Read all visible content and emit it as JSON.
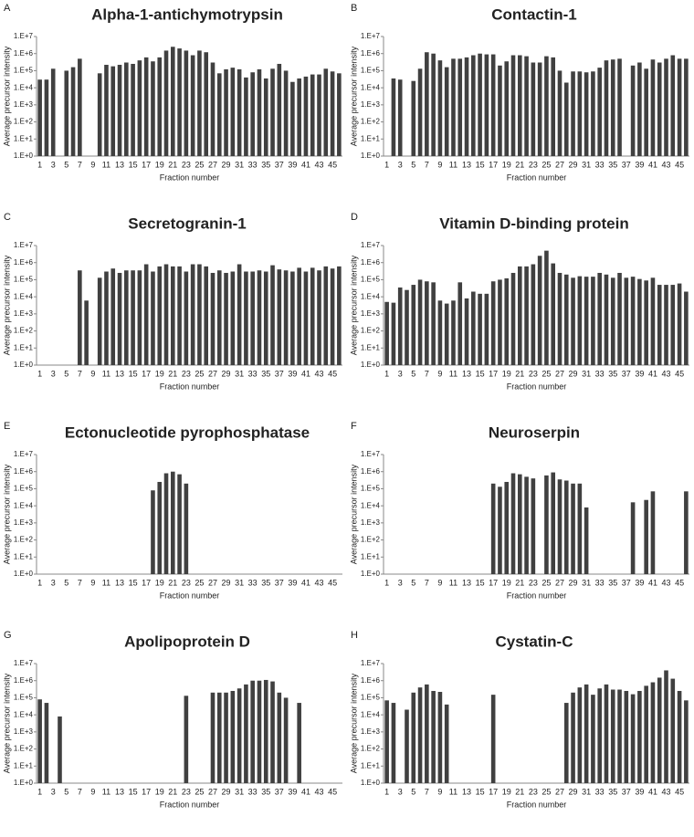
{
  "chart_data": [
    {
      "type": "bar",
      "label": "A",
      "title": "Alpha-1-antichymotrypsin",
      "xlabel": "Fraction number",
      "ylabel": "Average precursor intensity",
      "log_scale": true,
      "color": "#404040",
      "categories": [
        1,
        null,
        3,
        null,
        5,
        null,
        7,
        null,
        9,
        null,
        11,
        null,
        13,
        null,
        15,
        null,
        17,
        null,
        19,
        null,
        21,
        null,
        23,
        null,
        25,
        null,
        27,
        null,
        29,
        null,
        31,
        null,
        33,
        null,
        35,
        null,
        37,
        null,
        39,
        null,
        41,
        null,
        43,
        null,
        45,
        null
      ],
      "values": [
        30000,
        30000,
        130000,
        null,
        100000,
        160000,
        500000,
        null,
        null,
        70000,
        220000,
        180000,
        220000,
        300000,
        250000,
        400000,
        600000,
        350000,
        600000,
        1500000,
        2500000,
        2000000,
        1500000,
        800000,
        1500000,
        1200000,
        300000,
        70000,
        120000,
        150000,
        120000,
        40000,
        80000,
        120000,
        35000,
        130000,
        250000,
        100000,
        22000,
        35000,
        45000,
        60000,
        60000,
        130000,
        90000,
        70000
      ],
      "ylim": [
        1,
        10000000
      ],
      "yticks": [
        {
          "value": 1,
          "label": "1.E+0"
        },
        {
          "value": 10,
          "label": "1.E+1"
        },
        {
          "value": 100,
          "label": "1.E+2"
        },
        {
          "value": 1000,
          "label": "1.E+3"
        },
        {
          "value": 10000,
          "label": "1.E+4"
        },
        {
          "value": 100000,
          "label": "1.E+5"
        },
        {
          "value": 1000000,
          "label": "1.E+6"
        },
        {
          "value": 10000000,
          "label": "1.E+7"
        }
      ]
    },
    {
      "type": "bar",
      "label": "B",
      "title": "Contactin-1",
      "xlabel": "Fraction number",
      "ylabel": "Average precursor intensity",
      "log_scale": true,
      "color": "#404040",
      "categories": [
        1,
        null,
        3,
        null,
        5,
        null,
        7,
        null,
        9,
        null,
        11,
        null,
        13,
        null,
        15,
        null,
        17,
        null,
        19,
        null,
        21,
        null,
        23,
        null,
        25,
        null,
        27,
        null,
        29,
        null,
        31,
        null,
        33,
        null,
        35,
        null,
        37,
        null,
        39,
        null,
        41,
        null,
        43,
        null,
        45,
        null
      ],
      "values": [
        null,
        35000,
        30000,
        null,
        25000,
        130000,
        1200000,
        1000000,
        400000,
        160000,
        500000,
        500000,
        600000,
        800000,
        1000000,
        900000,
        900000,
        200000,
        350000,
        800000,
        800000,
        700000,
        300000,
        300000,
        700000,
        600000,
        100000,
        20000,
        90000,
        90000,
        80000,
        90000,
        150000,
        400000,
        450000,
        500000,
        null,
        200000,
        300000,
        130000,
        450000,
        300000,
        500000,
        800000,
        500000,
        500000
      ],
      "ylim": [
        1,
        10000000
      ],
      "yticks": [
        {
          "value": 1,
          "label": "1.E+0"
        },
        {
          "value": 10,
          "label": "1.E+1"
        },
        {
          "value": 100,
          "label": "1.E+2"
        },
        {
          "value": 1000,
          "label": "1.E+3"
        },
        {
          "value": 10000,
          "label": "1.E+4"
        },
        {
          "value": 100000,
          "label": "1.E+5"
        },
        {
          "value": 1000000,
          "label": "1.E+6"
        },
        {
          "value": 10000000,
          "label": "1.E+7"
        }
      ]
    },
    {
      "type": "bar",
      "label": "C",
      "title": "Secretogranin-1",
      "xlabel": "Fraction number",
      "ylabel": "Average precursor intensity",
      "log_scale": true,
      "color": "#404040",
      "categories": [
        1,
        null,
        3,
        null,
        5,
        null,
        7,
        null,
        9,
        null,
        11,
        null,
        13,
        null,
        15,
        null,
        17,
        null,
        19,
        null,
        21,
        null,
        23,
        null,
        25,
        null,
        27,
        null,
        29,
        null,
        31,
        null,
        33,
        null,
        35,
        null,
        37,
        null,
        39,
        null,
        41,
        null,
        43,
        null,
        45,
        null
      ],
      "values": [
        null,
        null,
        null,
        null,
        null,
        null,
        350000,
        6000,
        null,
        130000,
        300000,
        450000,
        250000,
        350000,
        350000,
        350000,
        800000,
        300000,
        600000,
        800000,
        600000,
        600000,
        300000,
        800000,
        800000,
        600000,
        250000,
        350000,
        250000,
        300000,
        800000,
        300000,
        300000,
        350000,
        300000,
        700000,
        400000,
        350000,
        300000,
        500000,
        300000,
        500000,
        350000,
        600000,
        450000,
        600000
      ],
      "ylim": [
        1,
        10000000
      ],
      "yticks": [
        {
          "value": 1,
          "label": "1.E+0"
        },
        {
          "value": 10,
          "label": "1.E+1"
        },
        {
          "value": 100,
          "label": "1.E+2"
        },
        {
          "value": 1000,
          "label": "1.E+3"
        },
        {
          "value": 10000,
          "label": "1.E+4"
        },
        {
          "value": 100000,
          "label": "1.E+5"
        },
        {
          "value": 1000000,
          "label": "1.E+6"
        },
        {
          "value": 10000000,
          "label": "1.E+7"
        }
      ]
    },
    {
      "type": "bar",
      "label": "D",
      "title": "Vitamin D-binding protein",
      "xlabel": "Fraction number",
      "ylabel": "Average precursor intensity",
      "log_scale": true,
      "color": "#404040",
      "categories": [
        1,
        null,
        3,
        null,
        5,
        null,
        7,
        null,
        9,
        null,
        11,
        null,
        13,
        null,
        15,
        null,
        17,
        null,
        19,
        null,
        21,
        null,
        23,
        null,
        25,
        null,
        27,
        null,
        29,
        null,
        31,
        null,
        33,
        null,
        35,
        null,
        37,
        null,
        39,
        null,
        41,
        null,
        43,
        null,
        45,
        null
      ],
      "values": [
        5000,
        4500,
        35000,
        25000,
        50000,
        100000,
        80000,
        70000,
        6000,
        4000,
        6000,
        70000,
        8000,
        20000,
        15000,
        15000,
        80000,
        100000,
        120000,
        250000,
        600000,
        600000,
        800000,
        2500000,
        5000000,
        900000,
        250000,
        200000,
        130000,
        160000,
        150000,
        150000,
        250000,
        200000,
        130000,
        250000,
        130000,
        150000,
        110000,
        90000,
        130000,
        50000,
        50000,
        50000,
        60000,
        20000
      ],
      "ylim": [
        1,
        10000000
      ],
      "yticks": [
        {
          "value": 1,
          "label": "1.E+0"
        },
        {
          "value": 10,
          "label": "1.E+1"
        },
        {
          "value": 100,
          "label": "1.E+2"
        },
        {
          "value": 1000,
          "label": "1.E+3"
        },
        {
          "value": 10000,
          "label": "1.E+4"
        },
        {
          "value": 100000,
          "label": "1.E+5"
        },
        {
          "value": 1000000,
          "label": "1.E+6"
        },
        {
          "value": 10000000,
          "label": "1.E+7"
        }
      ]
    },
    {
      "type": "bar",
      "label": "E",
      "title": "Ectonucleotide pyrophosphatase",
      "xlabel": "Fraction number",
      "ylabel": "Average precursor intensity",
      "log_scale": true,
      "color": "#404040",
      "categories": [
        1,
        null,
        3,
        null,
        5,
        null,
        7,
        null,
        9,
        null,
        11,
        null,
        13,
        null,
        15,
        null,
        17,
        null,
        19,
        null,
        21,
        null,
        23,
        null,
        25,
        null,
        27,
        null,
        29,
        null,
        31,
        null,
        33,
        null,
        35,
        null,
        37,
        null,
        39,
        null,
        41,
        null,
        43,
        null,
        45,
        null
      ],
      "values": [
        null,
        null,
        null,
        null,
        null,
        null,
        null,
        null,
        null,
        null,
        null,
        null,
        null,
        null,
        null,
        null,
        null,
        80000,
        250000,
        800000,
        1000000,
        700000,
        200000,
        null,
        null,
        null,
        null,
        null,
        null,
        null,
        null,
        null,
        null,
        null,
        null,
        null,
        null,
        null,
        null,
        null,
        null,
        null,
        null,
        null,
        null,
        null
      ],
      "ylim": [
        1,
        10000000
      ],
      "yticks": [
        {
          "value": 1,
          "label": "1.E+0"
        },
        {
          "value": 10,
          "label": "1.E+1"
        },
        {
          "value": 100,
          "label": "1.E+2"
        },
        {
          "value": 1000,
          "label": "1.E+3"
        },
        {
          "value": 10000,
          "label": "1.E+4"
        },
        {
          "value": 100000,
          "label": "1.E+5"
        },
        {
          "value": 1000000,
          "label": "1.E+6"
        },
        {
          "value": 10000000,
          "label": "1.E+7"
        }
      ]
    },
    {
      "type": "bar",
      "label": "F",
      "title": "Neuroserpin",
      "xlabel": "Fraction number",
      "ylabel": "Average precursor intensity",
      "log_scale": true,
      "color": "#404040",
      "categories": [
        1,
        null,
        3,
        null,
        5,
        null,
        7,
        null,
        9,
        null,
        11,
        null,
        13,
        null,
        15,
        null,
        17,
        null,
        19,
        null,
        21,
        null,
        23,
        null,
        25,
        null,
        27,
        null,
        29,
        null,
        31,
        null,
        33,
        null,
        35,
        null,
        37,
        null,
        39,
        null,
        41,
        null,
        43,
        null,
        45,
        null
      ],
      "values": [
        null,
        null,
        null,
        null,
        null,
        null,
        null,
        null,
        null,
        null,
        null,
        null,
        null,
        null,
        null,
        null,
        200000,
        130000,
        250000,
        800000,
        700000,
        500000,
        400000,
        null,
        600000,
        900000,
        350000,
        300000,
        200000,
        200000,
        8000,
        null,
        null,
        null,
        null,
        null,
        null,
        16000,
        null,
        22000,
        70000,
        null,
        null,
        null,
        null,
        70000
      ],
      "ylim": [
        1,
        10000000
      ],
      "yticks": [
        {
          "value": 1,
          "label": "1.E+0"
        },
        {
          "value": 10,
          "label": "1.E+1"
        },
        {
          "value": 100,
          "label": "1.E+2"
        },
        {
          "value": 1000,
          "label": "1.E+3"
        },
        {
          "value": 10000,
          "label": "1.E+4"
        },
        {
          "value": 100000,
          "label": "1.E+5"
        },
        {
          "value": 1000000,
          "label": "1.E+6"
        },
        {
          "value": 10000000,
          "label": "1.E+7"
        }
      ]
    },
    {
      "type": "bar",
      "label": "G",
      "title": "Apolipoprotein D",
      "xlabel": "Fraction number",
      "ylabel": "Average precursor intensity",
      "log_scale": true,
      "color": "#404040",
      "categories": [
        1,
        null,
        3,
        null,
        5,
        null,
        7,
        null,
        9,
        null,
        11,
        null,
        13,
        null,
        15,
        null,
        17,
        null,
        19,
        null,
        21,
        null,
        23,
        null,
        25,
        null,
        27,
        null,
        29,
        null,
        31,
        null,
        33,
        null,
        35,
        null,
        37,
        null,
        39,
        null,
        41,
        null,
        43,
        null,
        45,
        null
      ],
      "values": [
        80000,
        50000,
        null,
        8000,
        null,
        null,
        null,
        null,
        null,
        null,
        null,
        null,
        null,
        null,
        null,
        null,
        null,
        null,
        null,
        null,
        null,
        null,
        130000,
        null,
        null,
        null,
        200000,
        200000,
        200000,
        250000,
        350000,
        600000,
        1000000,
        1000000,
        1100000,
        900000,
        200000,
        100000,
        null,
        50000,
        null,
        null,
        null,
        null,
        null,
        null
      ],
      "ylim": [
        1,
        10000000
      ],
      "yticks": [
        {
          "value": 1,
          "label": "1.E+0"
        },
        {
          "value": 10,
          "label": "1.E+1"
        },
        {
          "value": 100,
          "label": "1.E+2"
        },
        {
          "value": 1000,
          "label": "1.E+3"
        },
        {
          "value": 10000,
          "label": "1.E+4"
        },
        {
          "value": 100000,
          "label": "1.E+5"
        },
        {
          "value": 1000000,
          "label": "1.E+6"
        },
        {
          "value": 10000000,
          "label": "1.E+7"
        }
      ]
    },
    {
      "type": "bar",
      "label": "H",
      "title": "Cystatin-C",
      "xlabel": "Fraction number",
      "ylabel": "Average precursor intensity",
      "log_scale": true,
      "color": "#404040",
      "categories": [
        1,
        null,
        3,
        null,
        5,
        null,
        7,
        null,
        9,
        null,
        11,
        null,
        13,
        null,
        15,
        null,
        17,
        null,
        19,
        null,
        21,
        null,
        23,
        null,
        25,
        null,
        27,
        null,
        29,
        null,
        31,
        null,
        33,
        null,
        35,
        null,
        37,
        null,
        39,
        null,
        41,
        null,
        43,
        null,
        45,
        null
      ],
      "values": [
        70000,
        50000,
        null,
        20000,
        200000,
        400000,
        600000,
        250000,
        220000,
        40000,
        null,
        null,
        null,
        null,
        null,
        null,
        150000,
        null,
        null,
        null,
        null,
        null,
        null,
        null,
        null,
        null,
        null,
        50000,
        200000,
        400000,
        600000,
        150000,
        350000,
        600000,
        300000,
        300000,
        250000,
        160000,
        250000,
        500000,
        800000,
        1500000,
        4000000,
        1300000,
        250000,
        70000
      ],
      "ylim": [
        1,
        10000000
      ],
      "yticks": [
        {
          "value": 1,
          "label": "1.E+0"
        },
        {
          "value": 10,
          "label": "1.E+1"
        },
        {
          "value": 100,
          "label": "1.E+2"
        },
        {
          "value": 1000,
          "label": "1.E+3"
        },
        {
          "value": 10000,
          "label": "1.E+4"
        },
        {
          "value": 100000,
          "label": "1.E+5"
        },
        {
          "value": 1000000,
          "label": "1.E+6"
        },
        {
          "value": 10000000,
          "label": "1.E+7"
        }
      ]
    }
  ]
}
